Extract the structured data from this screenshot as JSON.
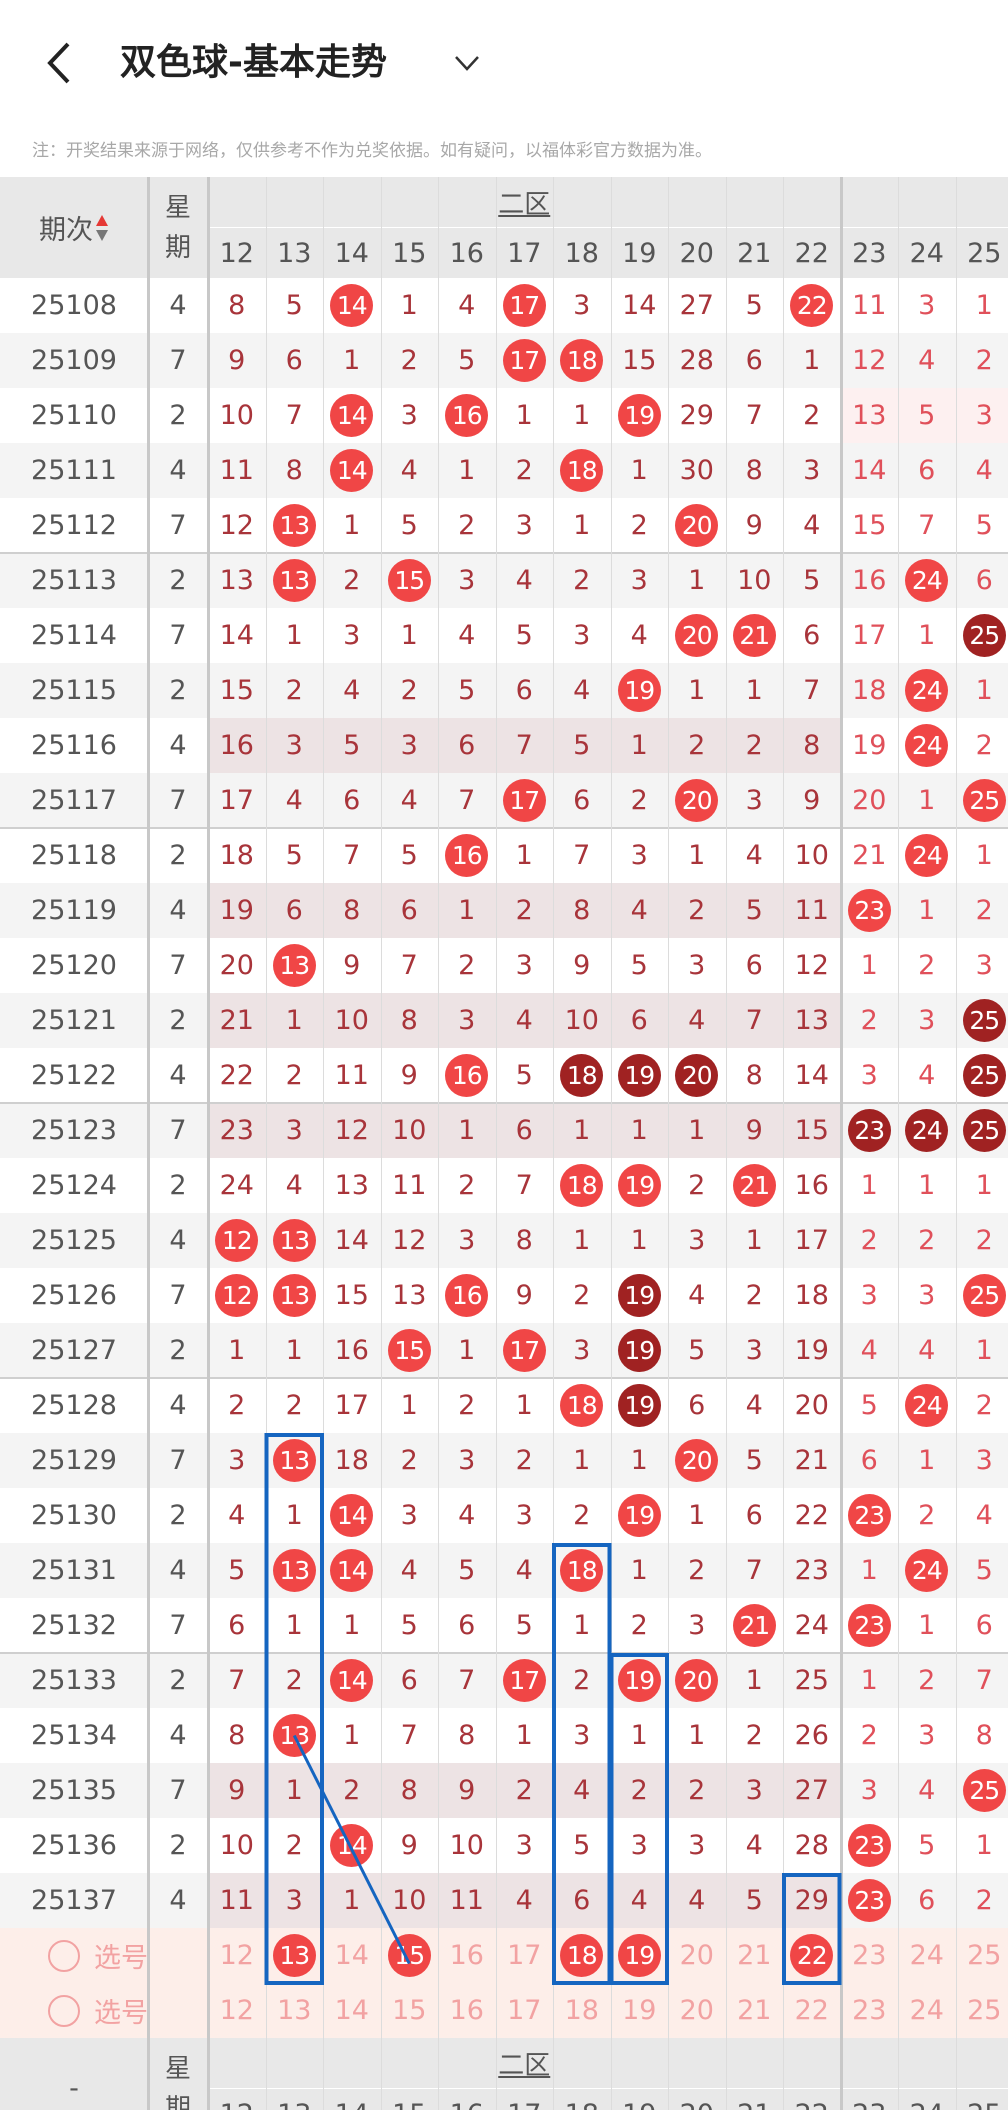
{
  "header": {
    "title": "双色球-基本走势",
    "back_icon": "chevron-left-icon",
    "dropdown_icon": "chevron-down-icon"
  },
  "note": "注：开奖结果来源于网络，仅供参考不作为兑奖依据。如有疑问，以福体彩官方数据为准。",
  "table": {
    "col_issue": "期次",
    "col_weekday": "星期",
    "zone_label": "二区",
    "numbers": [
      12,
      13,
      14,
      15,
      16,
      17,
      18,
      19,
      20,
      21,
      22,
      23,
      24,
      25
    ],
    "colors": {
      "hit": "#f04646",
      "repeat_hit": "#a02222",
      "omission_text": "#a8343a",
      "select_bg": "#fdeee9",
      "annotation": "#1565c0"
    },
    "rows": [
      {
        "issue": "25108",
        "weekday": "4",
        "values": [
          8,
          5,
          14,
          1,
          4,
          17,
          3,
          14,
          27,
          5,
          22,
          11,
          3,
          1
        ],
        "hits": [
          14,
          17,
          22
        ],
        "dark": []
      },
      {
        "issue": "25109",
        "weekday": "7",
        "values": [
          9,
          6,
          1,
          2,
          5,
          17,
          18,
          15,
          28,
          6,
          1,
          12,
          4,
          2
        ],
        "hits": [
          17,
          18
        ],
        "dark": []
      },
      {
        "issue": "25110",
        "weekday": "2",
        "values": [
          10,
          7,
          14,
          3,
          16,
          1,
          1,
          19,
          29,
          7,
          2,
          13,
          5,
          3
        ],
        "hits": [
          14,
          16,
          19
        ],
        "dark": []
      },
      {
        "issue": "25111",
        "weekday": "4",
        "values": [
          11,
          8,
          14,
          4,
          1,
          2,
          18,
          1,
          30,
          8,
          3,
          14,
          6,
          4
        ],
        "hits": [
          14,
          18
        ],
        "dark": []
      },
      {
        "issue": "25112",
        "weekday": "7",
        "values": [
          12,
          13,
          1,
          5,
          2,
          3,
          1,
          2,
          20,
          9,
          4,
          15,
          7,
          5
        ],
        "hits": [
          13,
          20
        ],
        "dark": []
      },
      {
        "issue": "25113",
        "weekday": "2",
        "values": [
          13,
          13,
          2,
          15,
          3,
          4,
          2,
          3,
          1,
          10,
          5,
          16,
          24,
          6
        ],
        "hits": [
          13,
          15,
          24
        ],
        "dark": []
      },
      {
        "issue": "25114",
        "weekday": "7",
        "values": [
          14,
          1,
          3,
          1,
          4,
          5,
          3,
          4,
          20,
          21,
          6,
          17,
          1,
          25
        ],
        "hits": [
          20,
          21
        ],
        "dark": [
          25
        ]
      },
      {
        "issue": "25115",
        "weekday": "2",
        "values": [
          15,
          2,
          4,
          2,
          5,
          6,
          4,
          19,
          1,
          1,
          7,
          18,
          24,
          1
        ],
        "hits": [
          19,
          24
        ],
        "dark": []
      },
      {
        "issue": "25116",
        "weekday": "4",
        "values": [
          16,
          3,
          5,
          3,
          6,
          7,
          5,
          1,
          2,
          2,
          8,
          19,
          24,
          2
        ],
        "hits": [
          24
        ],
        "dark": [],
        "shade": true
      },
      {
        "issue": "25117",
        "weekday": "7",
        "values": [
          17,
          4,
          6,
          4,
          7,
          17,
          6,
          2,
          20,
          3,
          9,
          20,
          1,
          25
        ],
        "hits": [
          17,
          20,
          25
        ],
        "dark": []
      },
      {
        "issue": "25118",
        "weekday": "2",
        "values": [
          18,
          5,
          7,
          5,
          16,
          1,
          7,
          3,
          1,
          4,
          10,
          21,
          24,
          1
        ],
        "hits": [
          16,
          24
        ],
        "dark": []
      },
      {
        "issue": "25119",
        "weekday": "4",
        "values": [
          19,
          6,
          8,
          6,
          1,
          2,
          8,
          4,
          2,
          5,
          11,
          23,
          1,
          2
        ],
        "hits": [
          23
        ],
        "dark": [],
        "shade": true
      },
      {
        "issue": "25120",
        "weekday": "7",
        "values": [
          20,
          13,
          9,
          7,
          2,
          3,
          9,
          5,
          3,
          6,
          12,
          1,
          2,
          3
        ],
        "hits": [
          13
        ],
        "dark": []
      },
      {
        "issue": "25121",
        "weekday": "2",
        "values": [
          21,
          1,
          10,
          8,
          3,
          4,
          10,
          6,
          4,
          7,
          13,
          2,
          3,
          25
        ],
        "hits": [],
        "dark": [
          25
        ],
        "shade": true
      },
      {
        "issue": "25122",
        "weekday": "4",
        "values": [
          22,
          2,
          11,
          9,
          16,
          5,
          18,
          19,
          20,
          8,
          14,
          3,
          4,
          25
        ],
        "hits": [
          16
        ],
        "dark": [
          18,
          19,
          20,
          25
        ]
      },
      {
        "issue": "25123",
        "weekday": "7",
        "values": [
          23,
          3,
          12,
          10,
          1,
          6,
          1,
          1,
          1,
          9,
          15,
          23,
          24,
          25
        ],
        "hits": [],
        "dark": [
          23,
          24,
          25
        ],
        "shade": true
      },
      {
        "issue": "25124",
        "weekday": "2",
        "values": [
          24,
          4,
          13,
          11,
          2,
          7,
          18,
          19,
          2,
          21,
          16,
          1,
          1,
          1
        ],
        "hits": [
          18,
          19,
          21
        ],
        "dark": []
      },
      {
        "issue": "25125",
        "weekday": "4",
        "values": [
          12,
          13,
          14,
          12,
          3,
          8,
          1,
          1,
          3,
          1,
          17,
          2,
          2,
          2
        ],
        "hits": [
          12,
          13
        ],
        "dark": []
      },
      {
        "issue": "25126",
        "weekday": "7",
        "values": [
          12,
          13,
          15,
          13,
          16,
          9,
          2,
          19,
          4,
          2,
          18,
          3,
          3,
          25
        ],
        "hits": [
          12,
          13,
          16,
          25
        ],
        "dark": [
          19
        ]
      },
      {
        "issue": "25127",
        "weekday": "2",
        "values": [
          1,
          1,
          16,
          15,
          1,
          17,
          3,
          19,
          5,
          3,
          19,
          4,
          4,
          1
        ],
        "hits": [
          15,
          17
        ],
        "dark": [
          19
        ]
      },
      {
        "issue": "25128",
        "weekday": "4",
        "values": [
          2,
          2,
          17,
          1,
          2,
          1,
          18,
          19,
          6,
          4,
          20,
          5,
          24,
          2
        ],
        "hits": [
          18,
          24
        ],
        "dark": [
          19
        ]
      },
      {
        "issue": "25129",
        "weekday": "7",
        "values": [
          3,
          13,
          18,
          2,
          3,
          2,
          1,
          1,
          20,
          5,
          21,
          6,
          1,
          3
        ],
        "hits": [
          13,
          20
        ],
        "dark": []
      },
      {
        "issue": "25130",
        "weekday": "2",
        "values": [
          4,
          1,
          14,
          3,
          4,
          3,
          2,
          19,
          1,
          6,
          22,
          23,
          2,
          4
        ],
        "hits": [
          14,
          19,
          23
        ],
        "dark": []
      },
      {
        "issue": "25131",
        "weekday": "4",
        "values": [
          5,
          13,
          14,
          4,
          5,
          4,
          18,
          1,
          2,
          7,
          23,
          1,
          24,
          5
        ],
        "hits": [
          13,
          14,
          18,
          24
        ],
        "dark": []
      },
      {
        "issue": "25132",
        "weekday": "7",
        "values": [
          6,
          1,
          1,
          5,
          6,
          5,
          1,
          2,
          3,
          21,
          24,
          23,
          1,
          6
        ],
        "hits": [
          21,
          23
        ],
        "dark": []
      },
      {
        "issue": "25133",
        "weekday": "2",
        "values": [
          7,
          2,
          14,
          6,
          7,
          17,
          2,
          19,
          20,
          1,
          25,
          1,
          2,
          7
        ],
        "hits": [
          14,
          17,
          19,
          20
        ],
        "dark": []
      },
      {
        "issue": "25134",
        "weekday": "4",
        "values": [
          8,
          13,
          1,
          7,
          8,
          1,
          3,
          1,
          1,
          2,
          26,
          2,
          3,
          8
        ],
        "hits": [
          13
        ],
        "dark": []
      },
      {
        "issue": "25135",
        "weekday": "7",
        "values": [
          9,
          1,
          2,
          8,
          9,
          2,
          4,
          2,
          2,
          3,
          27,
          3,
          4,
          25
        ],
        "hits": [
          25
        ],
        "dark": [],
        "shade": true
      },
      {
        "issue": "25136",
        "weekday": "2",
        "values": [
          10,
          2,
          14,
          9,
          10,
          3,
          5,
          3,
          3,
          4,
          28,
          23,
          5,
          1
        ],
        "hits": [
          14,
          23
        ],
        "dark": []
      },
      {
        "issue": "25137",
        "weekday": "4",
        "values": [
          11,
          3,
          1,
          10,
          11,
          4,
          6,
          4,
          4,
          5,
          29,
          23,
          6,
          2
        ],
        "hits": [
          23
        ],
        "dark": [],
        "shade": true
      }
    ],
    "select_rows": [
      {
        "label": "选号",
        "selected": [
          13,
          15,
          18,
          19,
          22
        ]
      },
      {
        "label": "选号",
        "selected": []
      }
    ],
    "footer_issue": "-"
  }
}
